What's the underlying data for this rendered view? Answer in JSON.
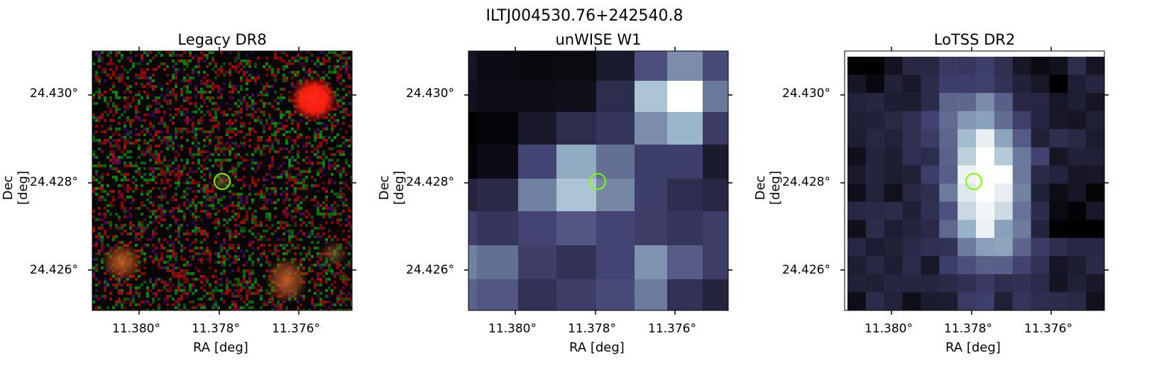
{
  "figure": {
    "title": "ILTJ004530.76+242540.8"
  },
  "panels": [
    {
      "title": "Legacy DR8",
      "xlabel": "RA [deg]",
      "ylabel": "Dec [deg]",
      "xticks": [
        "11.380°",
        "11.378°",
        "11.376°"
      ],
      "yticks": [
        "24.430°",
        "24.428°",
        "24.426°"
      ],
      "marker": "lime-circle"
    },
    {
      "title": "unWISE W1",
      "xlabel": "RA [deg]",
      "ylabel": "Dec [deg]",
      "xticks": [
        "11.380°",
        "11.378°",
        "11.376°"
      ],
      "yticks": [
        "24.430°",
        "24.428°",
        "24.426°"
      ],
      "marker": "lime-circle"
    },
    {
      "title": "LoTSS DR2",
      "xlabel": "RA [deg]",
      "ylabel": "Dec [deg]",
      "xticks": [
        "11.380°",
        "11.378°",
        "11.376°"
      ],
      "yticks": [
        "24.430°",
        "24.428°",
        "24.426°"
      ],
      "marker": "lime-circle"
    }
  ],
  "colors": {
    "marker": "#7cfc00",
    "legacy_source": "#ff2a1a",
    "legacy_galaxy": "#c86428"
  }
}
